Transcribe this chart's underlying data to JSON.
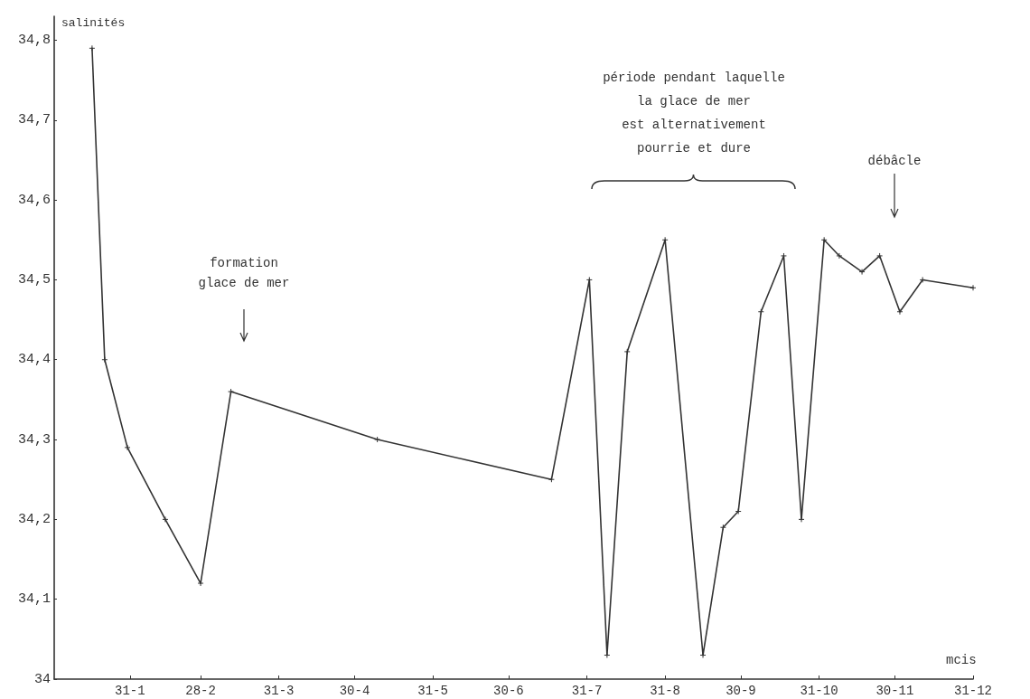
{
  "chart_data": {
    "type": "line",
    "ylabel": "salinités",
    "xlabel": "mcis",
    "x": [
      "--01-16",
      "--01-21",
      "--01-30",
      "--02-14",
      "--02-28",
      "--03-12",
      "--05-09",
      "--07-17",
      "--08-01",
      "--08-08",
      "--08-16",
      "--08-31",
      "--09-15",
      "--09-23",
      "--09-29",
      "--10-08",
      "--10-17",
      "--10-24",
      "--11-02",
      "--11-08",
      "--11-17",
      "--11-24",
      "--12-02",
      "--12-11",
      "--12-31"
    ],
    "values": [
      34.79,
      34.4,
      34.29,
      34.2,
      34.12,
      34.36,
      34.3,
      34.25,
      34.5,
      34.03,
      34.41,
      34.55,
      34.03,
      34.19,
      34.21,
      34.46,
      34.53,
      34.2,
      34.55,
      34.53,
      34.51,
      34.53,
      34.46,
      34.5,
      34.49
    ],
    "color": "#333333",
    "marker": "cross",
    "line_style": "solid",
    "grid": false,
    "xlim": [
      "--01-01",
      "--12-31"
    ],
    "xticks": [
      {
        "value": "--01-31",
        "label": "31-1"
      },
      {
        "value": "--02-28",
        "label": "28-2"
      },
      {
        "value": "--03-31",
        "label": "31-3"
      },
      {
        "value": "--04-30",
        "label": "30-4"
      },
      {
        "value": "--05-31",
        "label": "31-5"
      },
      {
        "value": "--06-30",
        "label": "30-6"
      },
      {
        "value": "--07-31",
        "label": "31-7"
      },
      {
        "value": "--08-31",
        "label": "31-8"
      },
      {
        "value": "--09-30",
        "label": "30-9"
      },
      {
        "value": "--10-31",
        "label": "31-10"
      },
      {
        "value": "--11-30",
        "label": "30-11"
      },
      {
        "value": "--12-31",
        "label": "31-12"
      }
    ],
    "ylim": [
      34,
      34.83
    ],
    "yticks": [
      34,
      {
        "value": 34.1,
        "label": "34,1"
      },
      {
        "value": 34.2,
        "label": "34,2"
      },
      {
        "value": 34.3,
        "label": "34,3"
      },
      {
        "value": 34.4,
        "label": "34,4"
      },
      {
        "value": 34.5,
        "label": "34,5"
      },
      {
        "value": 34.6,
        "label": "34,6"
      },
      {
        "value": 34.7,
        "label": "34,7"
      },
      {
        "value": 34.8,
        "label": "34,8"
      }
    ],
    "annotations": [
      "formation\nglace de mer",
      "période pendant laquelle\nla glace de mer\nest alternativement\npourrie et dure",
      "débâcle"
    ]
  }
}
